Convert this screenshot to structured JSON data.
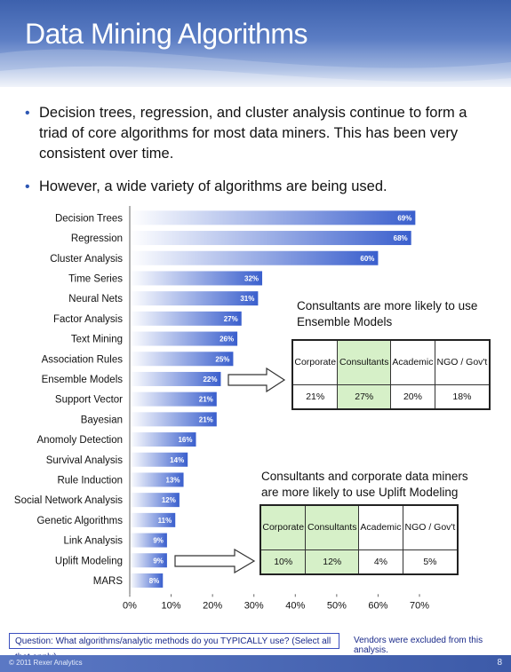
{
  "slide": {
    "title": "Data Mining Algorithms",
    "bullets": [
      "Decision trees, regression, and cluster analysis continue to form a triad of core algorithms for most data miners.  This has been very consistent over time.",
      "However, a wide variety of algorithms are being used."
    ],
    "question": "Question:  What algorithms/analytic methods do you TYPICALLY use?  (Select all that apply)",
    "vendors_note": "Vendors were excluded from this analysis.",
    "copyright": "© 2011 Rexer Analytics",
    "page_number": "8"
  },
  "callouts": {
    "ensemble": {
      "text": "Consultants are more likely to use Ensemble Models",
      "headers": [
        "Corporate",
        "Consultants",
        "Academic",
        "NGO / Gov't"
      ],
      "values": [
        "21%",
        "27%",
        "20%",
        "18%"
      ],
      "highlight_index": 1
    },
    "uplift": {
      "text": "Consultants and corporate data miners are more likely to use Uplift Modeling",
      "headers": [
        "Corporate",
        "Consultants",
        "Academic",
        "NGO / Gov't"
      ],
      "values": [
        "10%",
        "12%",
        "4%",
        "5%"
      ],
      "highlight_indices": [
        0,
        1
      ]
    }
  },
  "chart_data": {
    "type": "bar",
    "orientation": "horizontal",
    "categories": [
      "Decision Trees",
      "Regression",
      "Cluster Analysis",
      "Time Series",
      "Neural Nets",
      "Factor Analysis",
      "Text Mining",
      "Association Rules",
      "Ensemble Models",
      "Support Vector",
      "Bayesian",
      "Anomoly Detection",
      "Survival Analysis",
      "Rule Induction",
      "Social Network Analysis",
      "Genetic Algorithms",
      "Link Analysis",
      "Uplift Modeling",
      "MARS"
    ],
    "values": [
      69,
      68,
      60,
      32,
      31,
      27,
      26,
      25,
      22,
      21,
      21,
      16,
      14,
      13,
      12,
      11,
      9,
      9,
      8
    ],
    "value_labels": [
      "69%",
      "68%",
      "60%",
      "32%",
      "31%",
      "27%",
      "26%",
      "25%",
      "22%",
      "21%",
      "21%",
      "16%",
      "14%",
      "13%",
      "12%",
      "11%",
      "9%",
      "9%",
      "8%"
    ],
    "x_ticks": [
      "0%",
      "10%",
      "20%",
      "30%",
      "40%",
      "50%",
      "60%",
      "70%"
    ],
    "xlim": [
      0,
      70
    ],
    "bar_color_start": "#ffffff",
    "bar_color_end": "#3a5fcd"
  }
}
